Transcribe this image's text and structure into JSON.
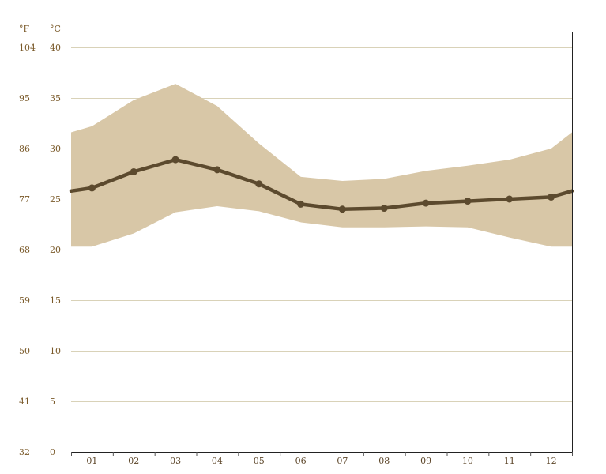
{
  "chart_data": {
    "type": "area",
    "categories": [
      "01",
      "02",
      "03",
      "04",
      "05",
      "06",
      "07",
      "08",
      "09",
      "10",
      "11",
      "12"
    ],
    "y_unit_left": "°F",
    "y_unit_right": "°C",
    "yticks_c": [
      0,
      5,
      10,
      15,
      20,
      25,
      30,
      35,
      40
    ],
    "yticks_f": [
      "32",
      "41",
      "50",
      "59",
      "68",
      "77",
      "86",
      "95",
      "104"
    ],
    "ylim": [
      0,
      40
    ],
    "grid": true,
    "series": [
      {
        "kind": "line",
        "color": "#5c4a2e",
        "values": [
          26.1,
          27.7,
          28.9,
          27.9,
          26.5,
          24.5,
          24.0,
          24.1,
          24.6,
          24.8,
          25.0,
          25.2
        ]
      },
      {
        "kind": "band-max",
        "color": "#d8c7a7",
        "values": [
          32.2,
          34.8,
          36.4,
          34.2,
          30.5,
          27.2,
          26.8,
          27.0,
          27.8,
          28.3,
          28.9,
          30.0
        ]
      },
      {
        "kind": "band-min",
        "color": "#d8c7a7",
        "values": [
          20.3,
          21.6,
          23.7,
          24.3,
          23.8,
          22.7,
          22.2,
          22.2,
          22.3,
          22.2,
          21.2,
          20.3
        ]
      }
    ],
    "wrap": {
      "line_start": 25.8,
      "line_end": 25.8,
      "max_start": 31.6,
      "max_end": 31.6,
      "min_start": 20.3,
      "min_end": 20.3
    }
  }
}
